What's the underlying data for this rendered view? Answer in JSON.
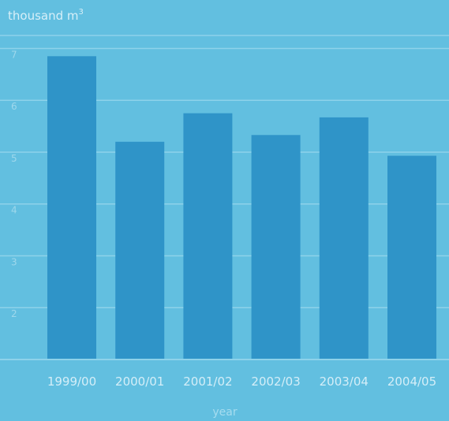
{
  "chart_data": {
    "type": "bar",
    "ylabel": "thousand m",
    "ylabel_superscript": "3",
    "xlabel": "year",
    "categories": [
      "1999/00",
      "2000/01",
      "2001/02",
      "2002/03",
      "2003/04",
      "2004/05"
    ],
    "values": [
      6.85,
      5.2,
      5.75,
      5.33,
      5.67,
      4.93
    ],
    "yticks": [
      "2",
      "3",
      "4",
      "5",
      "6",
      "7"
    ],
    "ylim": [
      1,
      7.25
    ],
    "grid": true,
    "colors": {
      "background": "#62bfe0",
      "bar": "#2f94c8",
      "grid": "#8ed2ea"
    }
  }
}
